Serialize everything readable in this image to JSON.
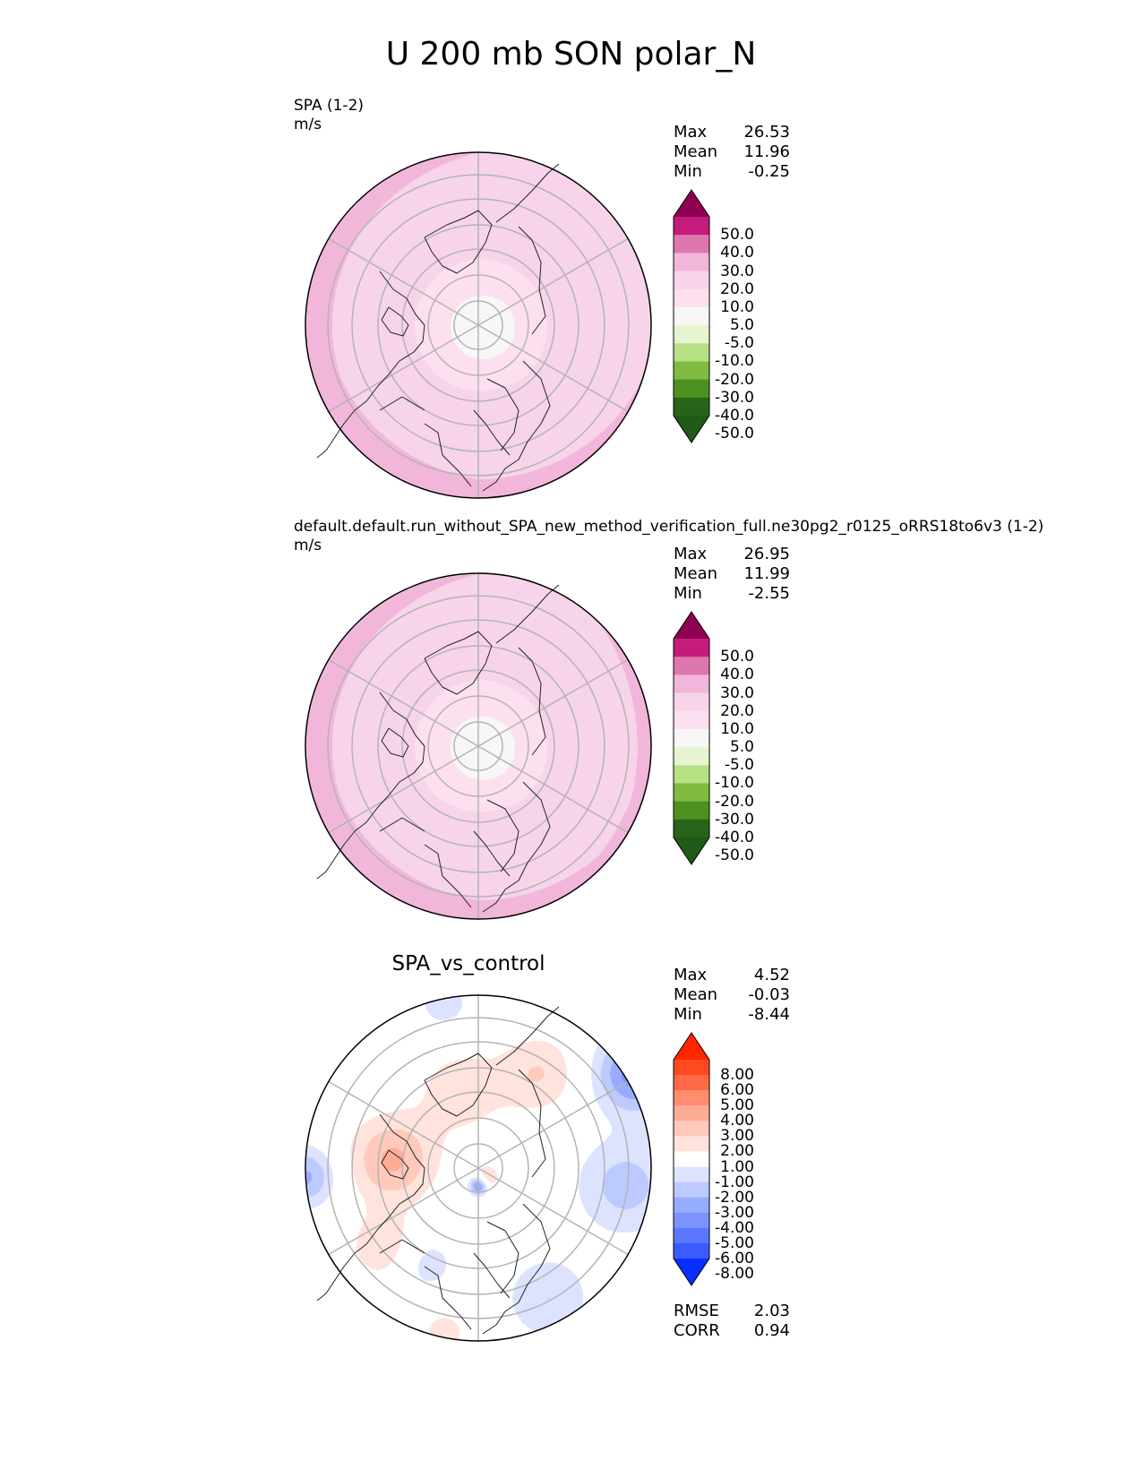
{
  "title": "U 200 mb SON polar_N",
  "colors": {
    "coast": "#222222",
    "grid": "#b4b4b4",
    "test_fill": "#f2c6de",
    "diff_fill": "#ffffff"
  },
  "chart_data": [
    {
      "type": "heatmap",
      "projection": "north-polar-stereographic",
      "title": "SPA (1-2)",
      "units": "m/s",
      "stats": {
        "Max": "26.53",
        "Mean": "11.96",
        "Min": "-0.25"
      },
      "colorbar": {
        "ticks": [
          "50.0",
          "40.0",
          "30.0",
          "20.0",
          "10.0",
          "5.0",
          "-5.0",
          "-10.0",
          "-20.0",
          "-30.0",
          "-40.0",
          "-50.0"
        ],
        "colors": [
          "#8e0152",
          "#c51b7d",
          "#de77ae",
          "#f1b6da",
          "#f7d4e9",
          "#fde0ef",
          "#f7f7f7",
          "#e6f5d0",
          "#b8e186",
          "#7fbc41",
          "#4d9221",
          "#276419",
          "#1f5a16"
        ],
        "extend": "both"
      }
    },
    {
      "type": "heatmap",
      "projection": "north-polar-stereographic",
      "title": "default.default.run_without_SPA_new_method_verification_full.ne30pg2_r0125_oRRS18to6v3 (1-2)",
      "units": "m/s",
      "stats": {
        "Max": "26.95",
        "Mean": "11.99",
        "Min": "-2.55"
      },
      "colorbar": {
        "ticks": [
          "50.0",
          "40.0",
          "30.0",
          "20.0",
          "10.0",
          "5.0",
          "-5.0",
          "-10.0",
          "-20.0",
          "-30.0",
          "-40.0",
          "-50.0"
        ],
        "colors": [
          "#8e0152",
          "#c51b7d",
          "#de77ae",
          "#f1b6da",
          "#f7d4e9",
          "#fde0ef",
          "#f7f7f7",
          "#e6f5d0",
          "#b8e186",
          "#7fbc41",
          "#4d9221",
          "#276419",
          "#1f5a16"
        ],
        "extend": "both"
      }
    },
    {
      "type": "heatmap",
      "projection": "north-polar-stereographic",
      "title": "SPA_vs_control",
      "stats": {
        "Max": "4.52",
        "Mean": "-0.03",
        "Min": "-8.44"
      },
      "metrics": {
        "RMSE": "2.03",
        "CORR": "0.94"
      },
      "colorbar": {
        "ticks": [
          "8.00",
          "6.00",
          "5.00",
          "4.00",
          "3.00",
          "2.00",
          "1.00",
          "-1.00",
          "-2.00",
          "-3.00",
          "-4.00",
          "-5.00",
          "-6.00",
          "-8.00"
        ],
        "colors": [
          "#ff2600",
          "#ff4a1f",
          "#ff6a47",
          "#ff8d70",
          "#ffac96",
          "#ffc9bb",
          "#ffe3dc",
          "#ffffff",
          "#dde3ff",
          "#bccaff",
          "#98acff",
          "#7b93ff",
          "#5a78ff",
          "#3a5cff",
          "#0a2eff"
        ],
        "extend": "both"
      }
    }
  ]
}
